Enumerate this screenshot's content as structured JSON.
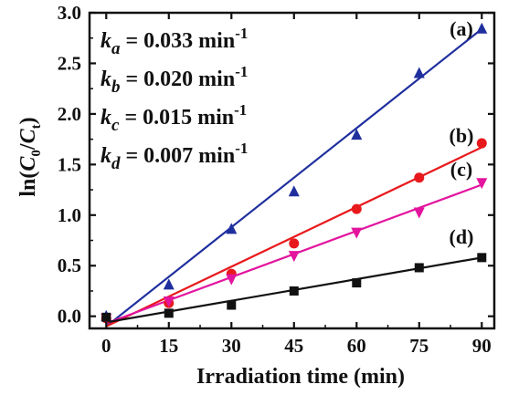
{
  "chart_data": {
    "type": "scatter",
    "xlabel": "Irradiation time (min)",
    "ylabel": {
      "prefix": "ln(",
      "c0_main": "C",
      "c0_sub": "0",
      "slash": "/",
      "ct_main": "C",
      "ct_sub": "t",
      "suffix": ")"
    },
    "xlim": [
      -4,
      93
    ],
    "ylim": [
      -0.12,
      3.0
    ],
    "x_ticks": [
      "0",
      "15",
      "30",
      "45",
      "60",
      "75",
      "90"
    ],
    "y_ticks": [
      "0.0",
      "0.5",
      "1.0",
      "1.5",
      "2.0",
      "2.5",
      "3.0"
    ],
    "grid": false,
    "series": [
      {
        "name": "(a)",
        "marker": "triangle-up",
        "color": "#1f2f9e",
        "x": [
          0,
          15,
          30,
          45,
          60,
          75,
          90
        ],
        "y": [
          0.0,
          0.31,
          0.86,
          1.23,
          1.79,
          2.4,
          2.84
        ],
        "fit": {
          "x": [
            0,
            90
          ],
          "y": [
            -0.1,
            2.84
          ]
        }
      },
      {
        "name": "(b)",
        "marker": "circle",
        "color": "#e8191c",
        "x": [
          0,
          15,
          30,
          45,
          60,
          75,
          90
        ],
        "y": [
          -0.02,
          0.13,
          0.42,
          0.72,
          1.06,
          1.37,
          1.71
        ],
        "fit": {
          "x": [
            0,
            90
          ],
          "y": [
            -0.1,
            1.67
          ]
        }
      },
      {
        "name": "(c)",
        "marker": "triangle-down",
        "color": "#e3149e",
        "x": [
          0,
          15,
          30,
          45,
          60,
          75,
          90
        ],
        "y": [
          -0.02,
          0.15,
          0.37,
          0.6,
          0.83,
          1.03,
          1.32
        ],
        "fit": {
          "x": [
            0,
            90
          ],
          "y": [
            -0.07,
            1.3
          ]
        }
      },
      {
        "name": "(d)",
        "marker": "square",
        "color": "#111111",
        "x": [
          0,
          15,
          30,
          45,
          60,
          75,
          90
        ],
        "y": [
          -0.01,
          0.03,
          0.11,
          0.25,
          0.33,
          0.48,
          0.58
        ],
        "fit": {
          "x": [
            0,
            90
          ],
          "y": [
            -0.06,
            0.58
          ]
        }
      }
    ],
    "annotations": [
      {
        "main": "k",
        "sub": "a",
        "value": " = 0.033 min",
        "sup": "-1"
      },
      {
        "main": "k",
        "sub": "b",
        "value": " = 0.020 min",
        "sup": "-1"
      },
      {
        "main": "k",
        "sub": "c",
        "value": " = 0.015 min",
        "sup": "-1"
      },
      {
        "main": "k",
        "sub": "d",
        "value": " = 0.007 min",
        "sup": "-1"
      }
    ]
  }
}
